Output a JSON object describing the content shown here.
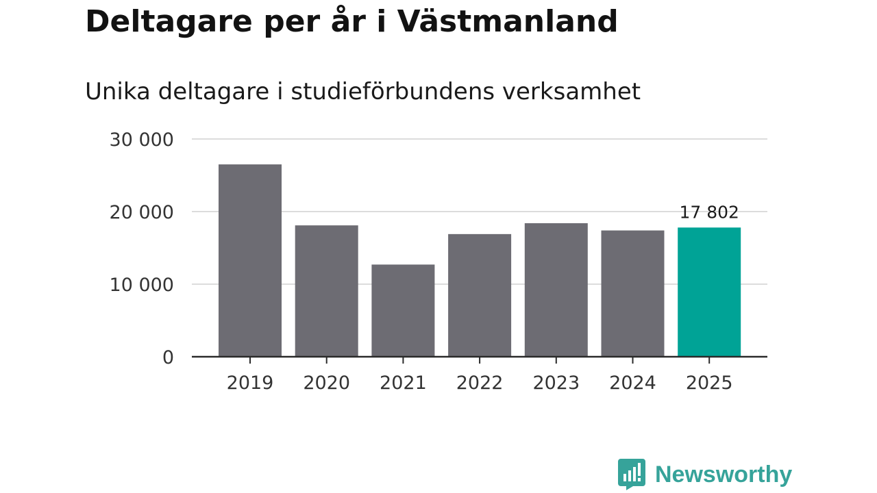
{
  "chart_data": {
    "type": "bar",
    "title": "Deltagare per år i Västmanland",
    "subtitle": "Unika deltagare i studieförbundens verksamhet",
    "categories": [
      "2019",
      "2020",
      "2021",
      "2022",
      "2023",
      "2024",
      "2025"
    ],
    "values": [
      26500,
      18100,
      12700,
      16900,
      18400,
      17400,
      17802
    ],
    "highlight_index": 6,
    "highlight_label": "17 802",
    "ylim": [
      0,
      30000
    ],
    "yticks": [
      0,
      10000,
      20000,
      30000
    ],
    "ytick_labels": [
      "0",
      "10 000",
      "20 000",
      "30 000"
    ],
    "grid": true,
    "xlabel": "",
    "ylabel": ""
  },
  "colors": {
    "bar": "#6d6c73",
    "highlight": "#00a396",
    "grid": "#dcdcdc",
    "axis": "#2a2a2a",
    "brand": "#36a39a"
  },
  "brand": {
    "name": "Newsworthy",
    "icon": "newsworthy-chart-bubble-icon"
  }
}
